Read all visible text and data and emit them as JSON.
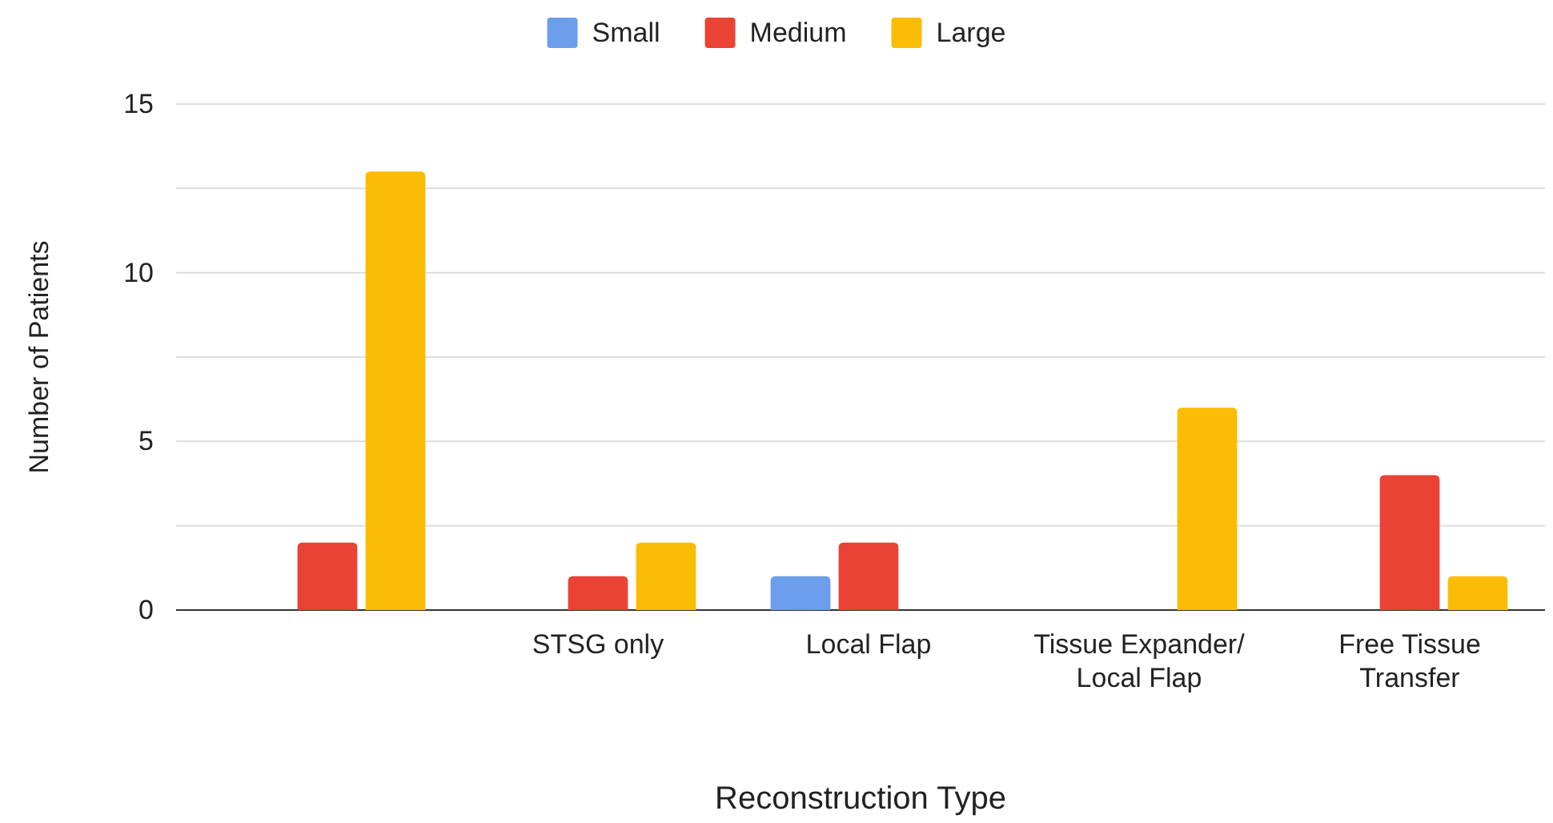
{
  "chart_data": {
    "type": "bar",
    "xlabel": "Reconstruction Type",
    "ylabel": "Number of Patients",
    "categories": [
      null,
      "STSG only",
      "Local Flap",
      "Tissue Expander/ Local Flap",
      "Free Tissue Transfer"
    ],
    "series": [
      {
        "name": "Small",
        "color": "#6d9eeb",
        "values": [
          null,
          null,
          1,
          null,
          null
        ]
      },
      {
        "name": "Medium",
        "color": "#ea4335",
        "values": [
          2,
          1,
          2,
          null,
          4
        ]
      },
      {
        "name": "Large",
        "color": "#fbbc04",
        "values": [
          13,
          2,
          null,
          6,
          1
        ]
      }
    ],
    "ylim": [
      0,
      15
    ],
    "yticks": [
      0,
      {
        "value": 2.5,
        "label": null
      },
      5,
      {
        "value": 7.5,
        "label": null
      },
      10,
      {
        "value": 12.5,
        "label": null
      },
      15
    ],
    "grid": "y",
    "legend": "top"
  }
}
